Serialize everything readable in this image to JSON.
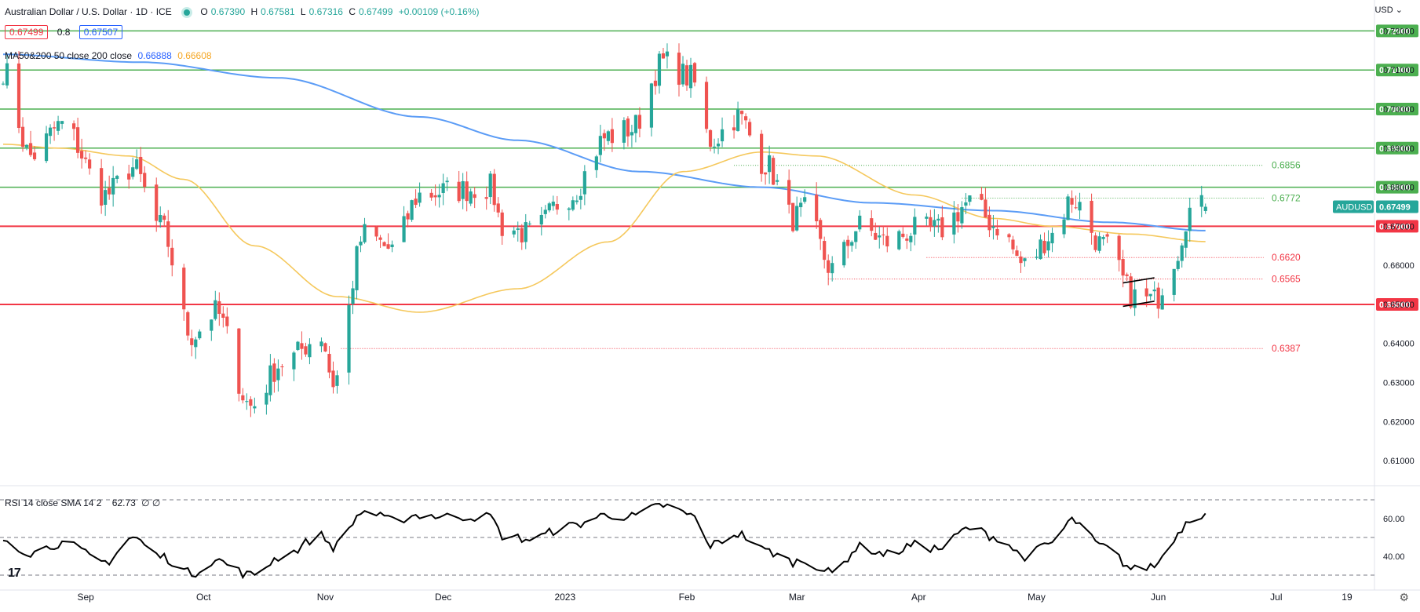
{
  "header": {
    "title": "Australian Dollar / U.S. Dollar · 1D · ICE",
    "open_label": "O",
    "open": "0.67390",
    "high_label": "H",
    "high": "0.67581",
    "low_label": "L",
    "low": "0.67316",
    "close_label": "C",
    "close": "0.67499",
    "change": "+0.00109 (+0.16%)"
  },
  "price_boxes": {
    "bid": "0.67499",
    "spread": "0.8",
    "ask": "0.67507"
  },
  "ma_legend": {
    "label": "MA50&200 50 close 200 close",
    "ma200_value": "0.66888",
    "ma50_value": "0.66608"
  },
  "rsi_legend": {
    "label": "RSI 14 close SMA 14 2",
    "value": "62.73",
    "extra": "∅ ∅"
  },
  "currency": "USD",
  "symbol_tag": "AUDUSD",
  "last_price_label": "0.67499",
  "colors": {
    "up": "#26a69a",
    "down": "#ef5350",
    "ma200": "#5b9cf6",
    "ma50": "#f5c85c",
    "green_level": "#4caf50",
    "red_level": "#f23645",
    "rsi": "#000000"
  },
  "chart_data": {
    "type": "candlestick",
    "title": "Australian Dollar / U.S. Dollar · 1D · ICE",
    "ylim": [
      0.605,
      0.7235
    ],
    "y_ticks": [
      "0.72000",
      "0.71000",
      "0.70000",
      "0.69000",
      "0.68000",
      "0.67000",
      "0.66000",
      "0.65000",
      "0.64000",
      "0.63000",
      "0.62000",
      "0.61000"
    ],
    "x_axis": {
      "start": "2022-08-11",
      "labels": [
        {
          "date": "2022-09-01",
          "label": "Sep"
        },
        {
          "date": "2022-10-01",
          "label": "Oct"
        },
        {
          "date": "2022-11-01",
          "label": "Nov"
        },
        {
          "date": "2022-12-01",
          "label": "Dec"
        },
        {
          "date": "2023-01-01",
          "label": "2023"
        },
        {
          "date": "2023-02-01",
          "label": "Feb"
        },
        {
          "date": "2023-03-01",
          "label": "Mar"
        },
        {
          "date": "2023-04-01",
          "label": "Apr"
        },
        {
          "date": "2023-05-01",
          "label": "May"
        },
        {
          "date": "2023-06-01",
          "label": "Jun"
        },
        {
          "date": "2023-07-01",
          "label": "Jul"
        },
        {
          "date": "2023-07-19",
          "label": "19"
        }
      ]
    },
    "close_anchors": [
      [
        "2022-08-11",
        0.71
      ],
      [
        "2022-08-18",
        0.688
      ],
      [
        "2022-08-26",
        0.696
      ],
      [
        "2022-09-06",
        0.678
      ],
      [
        "2022-09-13",
        0.685
      ],
      [
        "2022-09-20",
        0.67
      ],
      [
        "2022-09-28",
        0.642
      ],
      [
        "2022-10-04",
        0.648
      ],
      [
        "2022-10-13",
        0.624
      ],
      [
        "2022-10-21",
        0.635
      ],
      [
        "2022-10-31",
        0.642
      ],
      [
        "2022-11-03",
        0.63
      ],
      [
        "2022-11-11",
        0.668
      ],
      [
        "2022-11-18",
        0.664
      ],
      [
        "2022-11-25",
        0.678
      ],
      [
        "2022-12-02",
        0.679
      ],
      [
        "2022-12-13",
        0.68
      ],
      [
        "2022-12-16",
        0.67
      ],
      [
        "2022-12-23",
        0.668
      ],
      [
        "2023-01-02",
        0.678
      ],
      [
        "2023-01-12",
        0.693
      ],
      [
        "2023-01-18",
        0.695
      ],
      [
        "2023-01-26",
        0.712
      ],
      [
        "2023-02-02",
        0.708
      ],
      [
        "2023-02-07",
        0.692
      ],
      [
        "2023-02-14",
        0.698
      ],
      [
        "2023-02-21",
        0.686
      ],
      [
        "2023-02-28",
        0.672
      ],
      [
        "2023-03-03",
        0.674
      ],
      [
        "2023-03-10",
        0.659
      ],
      [
        "2023-03-17",
        0.67
      ],
      [
        "2023-03-24",
        0.666
      ],
      [
        "2023-03-31",
        0.669
      ],
      [
        "2023-04-06",
        0.669
      ],
      [
        "2023-04-14",
        0.676
      ],
      [
        "2023-04-21",
        0.67
      ],
      [
        "2023-04-28",
        0.66
      ],
      [
        "2023-05-05",
        0.668
      ],
      [
        "2023-05-10",
        0.677
      ],
      [
        "2023-05-18",
        0.665
      ],
      [
        "2023-05-26",
        0.652
      ],
      [
        "2023-05-31",
        0.651
      ],
      [
        "2023-06-05",
        0.662
      ],
      [
        "2023-06-09",
        0.674
      ],
      [
        "2023-06-13",
        0.675
      ]
    ],
    "last_candle": {
      "open": 0.6739,
      "high": 0.67581,
      "low": 0.67316,
      "close": 0.67499
    },
    "ma200_anchors": [
      [
        "2022-08-11",
        0.714
      ],
      [
        "2022-09-15",
        0.712
      ],
      [
        "2022-10-20",
        0.708
      ],
      [
        "2022-11-25",
        0.698
      ],
      [
        "2022-12-20",
        0.692
      ],
      [
        "2023-01-20",
        0.684
      ],
      [
        "2023-02-20",
        0.68
      ],
      [
        "2023-03-20",
        0.676
      ],
      [
        "2023-04-20",
        0.674
      ],
      [
        "2023-05-20",
        0.671
      ],
      [
        "2023-06-13",
        0.66888
      ]
    ],
    "ma50_anchors": [
      [
        "2022-08-11",
        0.691
      ],
      [
        "2022-08-25",
        0.69
      ],
      [
        "2022-09-12",
        0.688
      ],
      [
        "2022-09-26",
        0.682
      ],
      [
        "2022-10-14",
        0.665
      ],
      [
        "2022-11-04",
        0.652
      ],
      [
        "2022-11-25",
        0.648
      ],
      [
        "2022-12-20",
        0.654
      ],
      [
        "2023-01-12",
        0.666
      ],
      [
        "2023-01-31",
        0.684
      ],
      [
        "2023-02-20",
        0.689
      ],
      [
        "2023-03-06",
        0.688
      ],
      [
        "2023-03-31",
        0.678
      ],
      [
        "2023-04-20",
        0.672
      ],
      [
        "2023-05-05",
        0.67
      ],
      [
        "2023-05-25",
        0.668
      ],
      [
        "2023-06-13",
        0.66608
      ]
    ],
    "levels_green": [
      0.72,
      0.71,
      0.7,
      0.69,
      0.68
    ],
    "levels_red": [
      0.67,
      0.65
    ],
    "fib_levels": [
      {
        "value": 0.6856,
        "label": "0.6856",
        "color": "#4caf50"
      },
      {
        "value": 0.6772,
        "label": "0.6772",
        "color": "#4caf50"
      },
      {
        "value": 0.662,
        "label": "0.6620",
        "color": "#f23645"
      },
      {
        "value": 0.6565,
        "label": "0.6565",
        "color": "#f23645"
      },
      {
        "value": 0.6387,
        "label": "0.6387",
        "color": "#f23645"
      }
    ],
    "rsi": {
      "ylim": [
        25,
        75
      ],
      "levels": [
        70,
        50,
        30
      ],
      "y_ticks": [
        "60.00",
        "40.00"
      ],
      "last": 62.73,
      "anchors": [
        [
          "2022-08-11",
          49
        ],
        [
          "2022-08-18",
          42
        ],
        [
          "2022-08-26",
          47
        ],
        [
          "2022-09-06",
          37
        ],
        [
          "2022-09-13",
          50
        ],
        [
          "2022-09-20",
          40
        ],
        [
          "2022-09-28",
          31
        ],
        [
          "2022-10-04",
          38
        ],
        [
          "2022-10-13",
          30
        ],
        [
          "2022-10-21",
          40
        ],
        [
          "2022-10-31",
          51
        ],
        [
          "2022-11-03",
          45
        ],
        [
          "2022-11-11",
          64
        ],
        [
          "2022-11-18",
          59
        ],
        [
          "2022-11-25",
          62
        ],
        [
          "2022-12-02",
          61
        ],
        [
          "2022-12-13",
          61
        ],
        [
          "2022-12-16",
          51
        ],
        [
          "2022-12-23",
          49
        ],
        [
          "2023-01-02",
          56
        ],
        [
          "2023-01-12",
          62
        ],
        [
          "2023-01-18",
          61
        ],
        [
          "2023-01-26",
          67
        ],
        [
          "2023-02-02",
          62
        ],
        [
          "2023-02-07",
          46
        ],
        [
          "2023-02-14",
          52
        ],
        [
          "2023-02-21",
          43
        ],
        [
          "2023-02-28",
          37
        ],
        [
          "2023-03-03",
          38
        ],
        [
          "2023-03-10",
          31
        ],
        [
          "2023-03-17",
          45
        ],
        [
          "2023-03-24",
          41
        ],
        [
          "2023-03-31",
          46
        ],
        [
          "2023-04-06",
          44
        ],
        [
          "2023-04-14",
          55
        ],
        [
          "2023-04-21",
          50
        ],
        [
          "2023-04-28",
          40
        ],
        [
          "2023-05-05",
          47
        ],
        [
          "2023-05-10",
          59
        ],
        [
          "2023-05-18",
          45
        ],
        [
          "2023-05-26",
          33
        ],
        [
          "2023-05-31",
          35
        ],
        [
          "2023-06-05",
          50
        ],
        [
          "2023-06-09",
          60
        ],
        [
          "2023-06-13",
          62.73
        ]
      ]
    }
  }
}
